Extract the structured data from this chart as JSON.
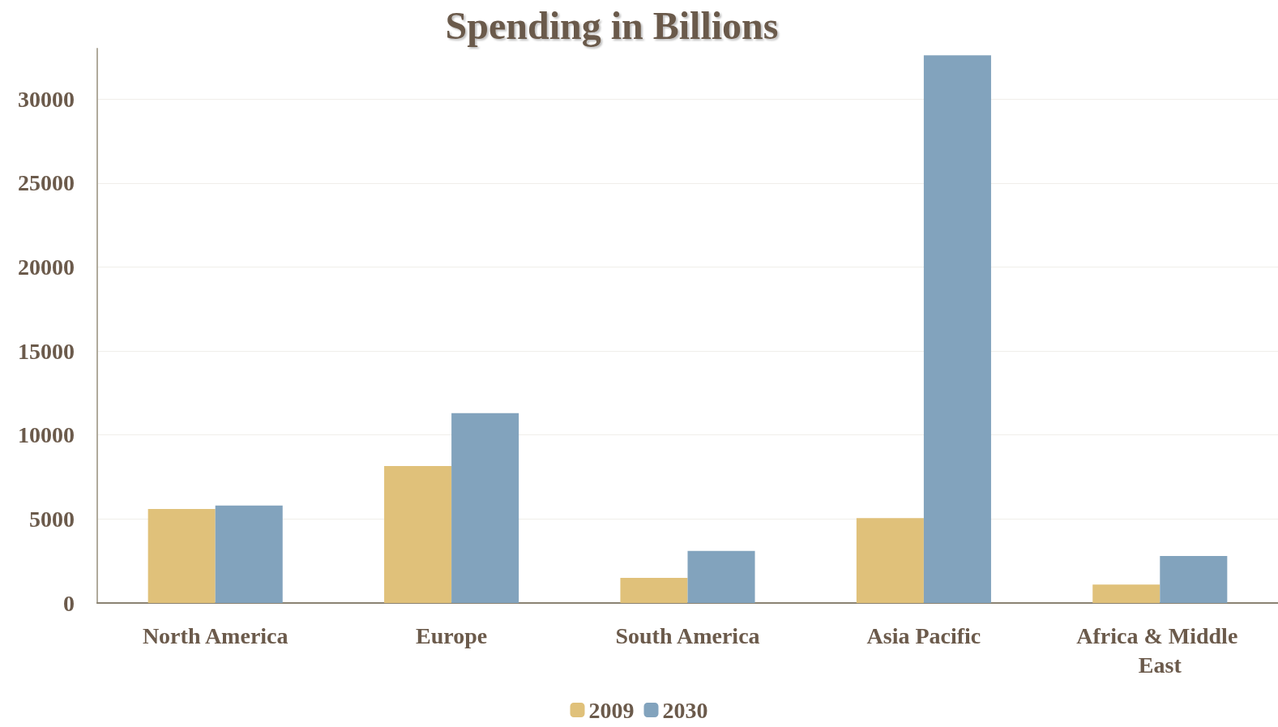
{
  "chart_data": {
    "type": "bar",
    "title": "Spending in Billions",
    "categories": [
      "North America",
      "Europe",
      "South America",
      "Asia Pacific",
      "Africa & Middle East"
    ],
    "series": [
      {
        "name": "2009",
        "color": "#e0c17a",
        "values": [
          5600,
          8150,
          1500,
          5050,
          1100
        ]
      },
      {
        "name": "2030",
        "color": "#82a3bd",
        "values": [
          5800,
          11300,
          3100,
          32600,
          2800
        ]
      }
    ],
    "ylim": [
      0,
      33000
    ],
    "yticks": [
      0,
      5000,
      10000,
      15000,
      20000,
      25000,
      30000
    ],
    "grid": "y",
    "legend": "bottom"
  }
}
